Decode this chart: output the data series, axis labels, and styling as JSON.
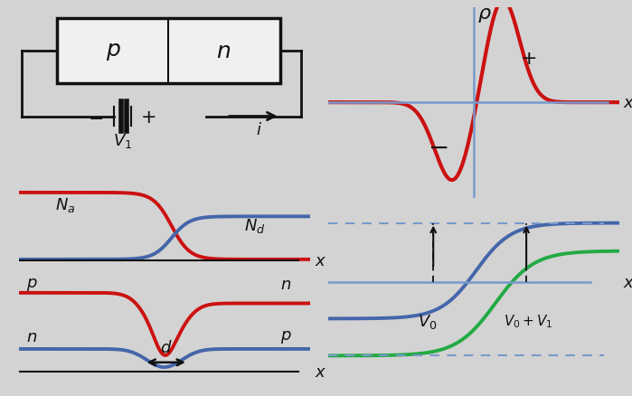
{
  "bg_left": "#d3d3d3",
  "bg_right": "#eceade",
  "red_color": "#cc1111",
  "blue_color": "#4466aa",
  "green_color": "#22aa44",
  "axis_color": "#7799cc",
  "black": "#111111",
  "white": "#f0f0f0"
}
